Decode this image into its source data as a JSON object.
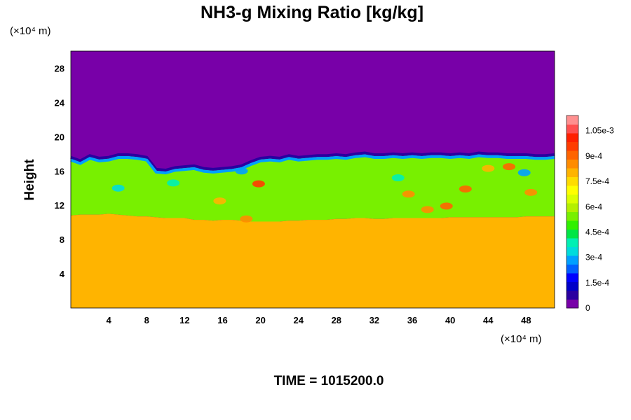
{
  "chart_data": {
    "type": "heatmap",
    "title": "NH3-g Mixing Ratio [kg/kg]",
    "ylabel": "Height",
    "x_unit_label": "(×10⁴ m)",
    "y_unit_label": "(×10⁴ m)",
    "footer": "TIME = 1015200.0",
    "xlim": [
      0,
      51
    ],
    "ylim": [
      0,
      30
    ],
    "x_ticks": [
      4,
      8,
      12,
      16,
      20,
      24,
      28,
      32,
      36,
      40,
      44,
      48
    ],
    "y_ticks": [
      4,
      8,
      12,
      16,
      20,
      24,
      28
    ],
    "colorbar": {
      "range": [
        0,
        0.00114
      ],
      "tick_values": [
        0,
        0.00015,
        0.0003,
        0.00045,
        0.0006,
        0.00075,
        0.0009,
        0.00105
      ],
      "tick_labels": [
        "0",
        "1.5e-4",
        "3e-4",
        "4.5e-4",
        "6e-4",
        "7.5e-4",
        "9e-4",
        "1.05e-3"
      ],
      "colors": [
        "#7800a8",
        "#2a00a0",
        "#0000c8",
        "#0000ff",
        "#0060ff",
        "#00a0ff",
        "#00dcdc",
        "#00f0b4",
        "#00e646",
        "#30f000",
        "#78f000",
        "#b4f000",
        "#dcff00",
        "#ffff00",
        "#ffdc00",
        "#ffb400",
        "#ff8c00",
        "#ff6400",
        "#ff3c00",
        "#ff2000",
        "#ff5050",
        "#ff9090"
      ]
    },
    "field": {
      "upper_value": 0.0,
      "lower_value": 0.00078,
      "mid_value": 0.00055,
      "interface_height": [
        17.6,
        17.2,
        17.8,
        17.5,
        17.6,
        17.9,
        17.9,
        17.8,
        17.6,
        16.2,
        16.1,
        16.4,
        16.5,
        16.6,
        16.3,
        16.2,
        16.3,
        16.4,
        16.6,
        17.1,
        17.5,
        17.6,
        17.5,
        17.8,
        17.6,
        17.7,
        17.8,
        17.8,
        17.9,
        17.8,
        18.0,
        18.1,
        17.9,
        17.9,
        18.0,
        17.9,
        18.0,
        17.9,
        18.0,
        18.0,
        17.9,
        18.0,
        17.9,
        18.1,
        18.0,
        18.0,
        17.9,
        17.9,
        17.9,
        17.8,
        17.8,
        17.9
      ],
      "boundary_height": [
        10.8,
        10.9,
        10.9,
        10.9,
        11.0,
        10.9,
        10.8,
        10.7,
        10.7,
        10.6,
        10.5,
        10.5,
        10.5,
        10.3,
        10.3,
        10.2,
        10.3,
        10.3,
        10.2,
        10.1,
        10.1,
        10.1,
        10.1,
        10.2,
        10.2,
        10.3,
        10.3,
        10.3,
        10.4,
        10.4,
        10.5,
        10.5,
        10.4,
        10.4,
        10.5,
        10.5,
        10.5,
        10.5,
        10.5,
        10.5,
        10.6,
        10.6,
        10.6,
        10.6,
        10.6,
        10.6,
        10.6,
        10.6,
        10.7,
        10.7,
        10.7,
        10.7
      ],
      "blobs": [
        {
          "x": 19.8,
          "y": 14.5,
          "value": 0.00095
        },
        {
          "x": 39.6,
          "y": 11.9,
          "value": 0.00093
        },
        {
          "x": 41.6,
          "y": 13.9,
          "value": 0.00092
        },
        {
          "x": 46.2,
          "y": 16.5,
          "value": 0.00092
        },
        {
          "x": 35.6,
          "y": 13.3,
          "value": 0.00088
        },
        {
          "x": 18.5,
          "y": 10.4,
          "value": 0.00087
        },
        {
          "x": 37.6,
          "y": 11.5,
          "value": 0.00085
        },
        {
          "x": 48.5,
          "y": 13.5,
          "value": 0.00086
        },
        {
          "x": 15.7,
          "y": 12.5,
          "value": 0.0008
        },
        {
          "x": 44.0,
          "y": 16.3,
          "value": 0.00082
        },
        {
          "x": 5.0,
          "y": 14.0,
          "value": 0.00035
        },
        {
          "x": 18.0,
          "y": 16.0,
          "value": 0.0003
        },
        {
          "x": 47.8,
          "y": 15.8,
          "value": 0.0003
        },
        {
          "x": 34.5,
          "y": 15.2,
          "value": 0.00038
        },
        {
          "x": 10.8,
          "y": 14.6,
          "value": 0.0004
        }
      ]
    }
  }
}
